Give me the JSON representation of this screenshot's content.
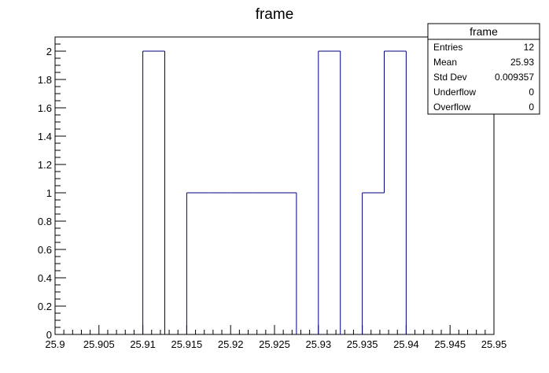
{
  "chart_data": {
    "type": "histogram",
    "title": "frame",
    "xlabel": "",
    "ylabel": "",
    "xlim": [
      25.9,
      25.95
    ],
    "ylim": [
      0,
      2.1
    ],
    "bin_width": 0.0025,
    "bins": [
      {
        "x0": 25.9,
        "x1": 25.9025,
        "value": 0
      },
      {
        "x0": 25.9025,
        "x1": 25.905,
        "value": 0
      },
      {
        "x0": 25.905,
        "x1": 25.9075,
        "value": 0
      },
      {
        "x0": 25.9075,
        "x1": 25.91,
        "value": 0
      },
      {
        "x0": 25.91,
        "x1": 25.9125,
        "value": 2
      },
      {
        "x0": 25.9125,
        "x1": 25.915,
        "value": 0
      },
      {
        "x0": 25.915,
        "x1": 25.9175,
        "value": 1
      },
      {
        "x0": 25.9175,
        "x1": 25.92,
        "value": 1
      },
      {
        "x0": 25.92,
        "x1": 25.9225,
        "value": 1
      },
      {
        "x0": 25.9225,
        "x1": 25.925,
        "value": 1
      },
      {
        "x0": 25.925,
        "x1": 25.9275,
        "value": 1
      },
      {
        "x0": 25.9275,
        "x1": 25.93,
        "value": 0
      },
      {
        "x0": 25.93,
        "x1": 25.9325,
        "value": 2
      },
      {
        "x0": 25.9325,
        "x1": 25.935,
        "value": 0
      },
      {
        "x0": 25.935,
        "x1": 25.9375,
        "value": 1
      },
      {
        "x0": 25.9375,
        "x1": 25.94,
        "value": 2
      },
      {
        "x0": 25.94,
        "x1": 25.9425,
        "value": 0
      },
      {
        "x0": 25.9425,
        "x1": 25.945,
        "value": 0
      },
      {
        "x0": 25.945,
        "x1": 25.9475,
        "value": 0
      },
      {
        "x0": 25.9475,
        "x1": 25.95,
        "value": 0
      }
    ],
    "x_ticks": [
      "25.9",
      "25.905",
      "25.91",
      "25.915",
      "25.92",
      "25.925",
      "25.93",
      "25.935",
      "25.94",
      "25.945",
      "25.95"
    ],
    "y_ticks": [
      "0",
      "0.2",
      "0.4",
      "0.6",
      "0.8",
      "1",
      "1.2",
      "1.4",
      "1.6",
      "1.8",
      "2"
    ],
    "line_color": "#000080",
    "grid": false,
    "legend": "none",
    "stats_box": {
      "title": "frame",
      "placement": "top-right",
      "rows": [
        {
          "label": "Entries",
          "value": "12"
        },
        {
          "label": "Mean",
          "value": "25.93"
        },
        {
          "label": "Std Dev",
          "value": "0.009357"
        },
        {
          "label": "Underflow",
          "value": "0"
        },
        {
          "label": "Overflow",
          "value": "0"
        }
      ]
    }
  }
}
